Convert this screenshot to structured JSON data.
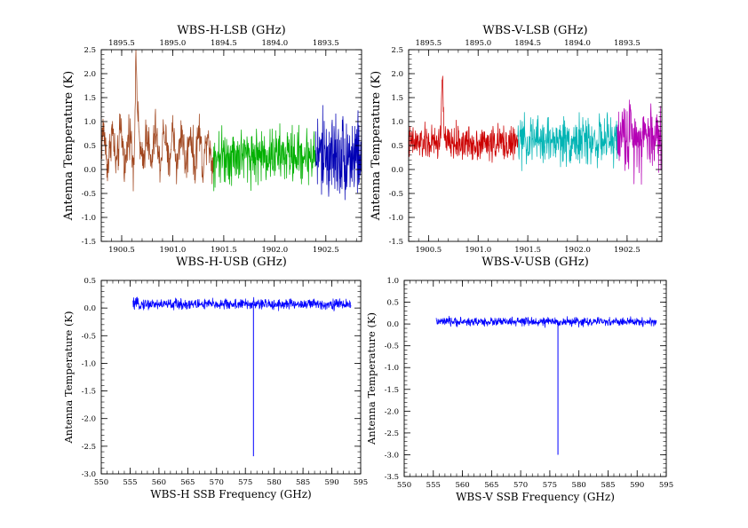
{
  "chart_data": [
    {
      "type": "line",
      "title": "WBS-H-LSB (GHz)",
      "xlabel": "WBS-H-USB (GHz)",
      "ylabel": "Antenna Temperature (K)",
      "xlim": [
        1900.3,
        1902.85
      ],
      "ylim": [
        -1.5,
        2.5
      ],
      "x_ticks": [
        "1900.5",
        "1901.0",
        "1901.5",
        "1902.0",
        "1902.5"
      ],
      "y_ticks": [
        "-1.5",
        "-1.0",
        "-0.5",
        "0.0",
        "0.5",
        "1.0",
        "1.5",
        "2.0",
        "2.5"
      ],
      "top_ticks": [
        "1895.5",
        "1895.0",
        "1894.5",
        "1894.0",
        "1893.5"
      ],
      "top_tick_values": [
        1895.5,
        1895.0,
        1894.5,
        1894.0,
        1893.5
      ],
      "top_mapping": {
        "upper_plus_lower": 3796.0
      },
      "grid": false,
      "series": [
        {
          "color": "#a0461e",
          "x_range": [
            1900.3,
            1901.4
          ],
          "baseline": 0.45,
          "noise": 0.28,
          "oscillation": 0.35,
          "peak": {
            "x": 1900.64,
            "y": 2.25
          }
        },
        {
          "color": "#00b000",
          "x_range": [
            1901.4,
            1902.4
          ],
          "baseline": 0.3,
          "noise": 0.35
        },
        {
          "color": "#0000b4",
          "x_range": [
            1902.4,
            1902.85
          ],
          "baseline": 0.3,
          "noise": 0.55
        }
      ]
    },
    {
      "type": "line",
      "title": "WBS-V-LSB (GHz)",
      "xlabel": "WBS-V-USB (GHz)",
      "ylabel": "Antenna Temperature (K)",
      "xlim": [
        1900.3,
        1902.85
      ],
      "ylim": [
        -1.5,
        2.5
      ],
      "x_ticks": [
        "1900.5",
        "1901.0",
        "1901.5",
        "1902.0",
        "1902.5"
      ],
      "y_ticks": [
        "-1.5",
        "-1.0",
        "-0.5",
        "0.0",
        "0.5",
        "1.0",
        "1.5",
        "2.0",
        "2.5"
      ],
      "top_ticks": [
        "1895.5",
        "1895.0",
        "1894.5",
        "1894.0",
        "1893.5"
      ],
      "top_tick_values": [
        1895.5,
        1895.0,
        1894.5,
        1894.0,
        1893.5
      ],
      "top_mapping": {
        "upper_plus_lower": 3796.0
      },
      "grid": false,
      "series": [
        {
          "color": "#cc0000",
          "x_range": [
            1900.3,
            1901.4
          ],
          "baseline": 0.55,
          "noise": 0.22,
          "peak": {
            "x": 1900.64,
            "y": 1.95
          }
        },
        {
          "color": "#00b4b4",
          "x_range": [
            1901.4,
            1902.4
          ],
          "baseline": 0.6,
          "noise": 0.3
        },
        {
          "color": "#b400b4",
          "x_range": [
            1902.4,
            1902.85
          ],
          "baseline": 0.7,
          "noise": 0.45
        }
      ]
    },
    {
      "type": "line",
      "title": "",
      "xlabel": "WBS-H SSB Frequency (GHz)",
      "ylabel": "Antenna Temperature (K)",
      "xlim": [
        550,
        595
      ],
      "ylim": [
        -3.0,
        0.5
      ],
      "x_ticks": [
        "550",
        "555",
        "560",
        "565",
        "570",
        "575",
        "580",
        "585",
        "590",
        "595"
      ],
      "y_ticks": [
        "-3.0",
        "-2.5",
        "-2.0",
        "-1.5",
        "-1.0",
        "-0.5",
        "0.0",
        "0.5"
      ],
      "grid": false,
      "series": [
        {
          "color": "#0000ff",
          "x_range": [
            555.5,
            593.3
          ],
          "baseline": 0.07,
          "noise": 0.06,
          "dip": {
            "x": 576.4,
            "y": -2.68
          }
        }
      ]
    },
    {
      "type": "line",
      "title": "",
      "xlabel": "WBS-V SSB Frequency (GHz)",
      "ylabel": "Antenna Temperature (K)",
      "xlim": [
        550,
        595
      ],
      "ylim": [
        -3.5,
        1.0
      ],
      "x_ticks": [
        "550",
        "555",
        "560",
        "565",
        "570",
        "575",
        "580",
        "585",
        "590",
        "595"
      ],
      "y_ticks": [
        "-3.5",
        "-3.0",
        "-2.5",
        "-2.0",
        "-1.5",
        "-1.0",
        "-0.5",
        "0.0",
        "0.5",
        "1.0"
      ],
      "grid": false,
      "series": [
        {
          "color": "#0000ff",
          "x_range": [
            555.5,
            593.3
          ],
          "baseline": 0.05,
          "noise": 0.06,
          "dip": {
            "x": 576.4,
            "y": -3.0
          }
        }
      ]
    }
  ]
}
